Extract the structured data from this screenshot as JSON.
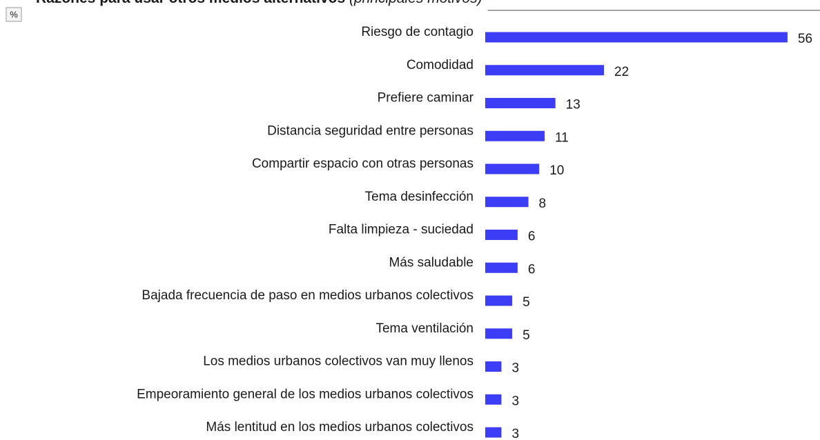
{
  "chart_data": {
    "type": "bar",
    "orientation": "horizontal",
    "title": "Razones para usar otros medios alternativos",
    "subtitle": "(principales motivos)",
    "unit": "%",
    "color": "#3d3df5",
    "categories": [
      "Riesgo de contagio",
      "Comodidad",
      "Prefiere caminar",
      "Distancia seguridad entre personas",
      "Compartir espacio con otras personas",
      "Tema desinfección",
      "Falta limpieza - suciedad",
      "Más saludable",
      "Bajada frecuencia de paso en medios urbanos colectivos",
      "Tema ventilación",
      "Los medios urbanos colectivos van muy llenos",
      "Empeoramiento general de los medios urbanos colectivos",
      "Más lentitud en los medios urbanos colectivos"
    ],
    "values": [
      56,
      22,
      13,
      11,
      10,
      8,
      6,
      6,
      5,
      5,
      3,
      3,
      3
    ]
  }
}
